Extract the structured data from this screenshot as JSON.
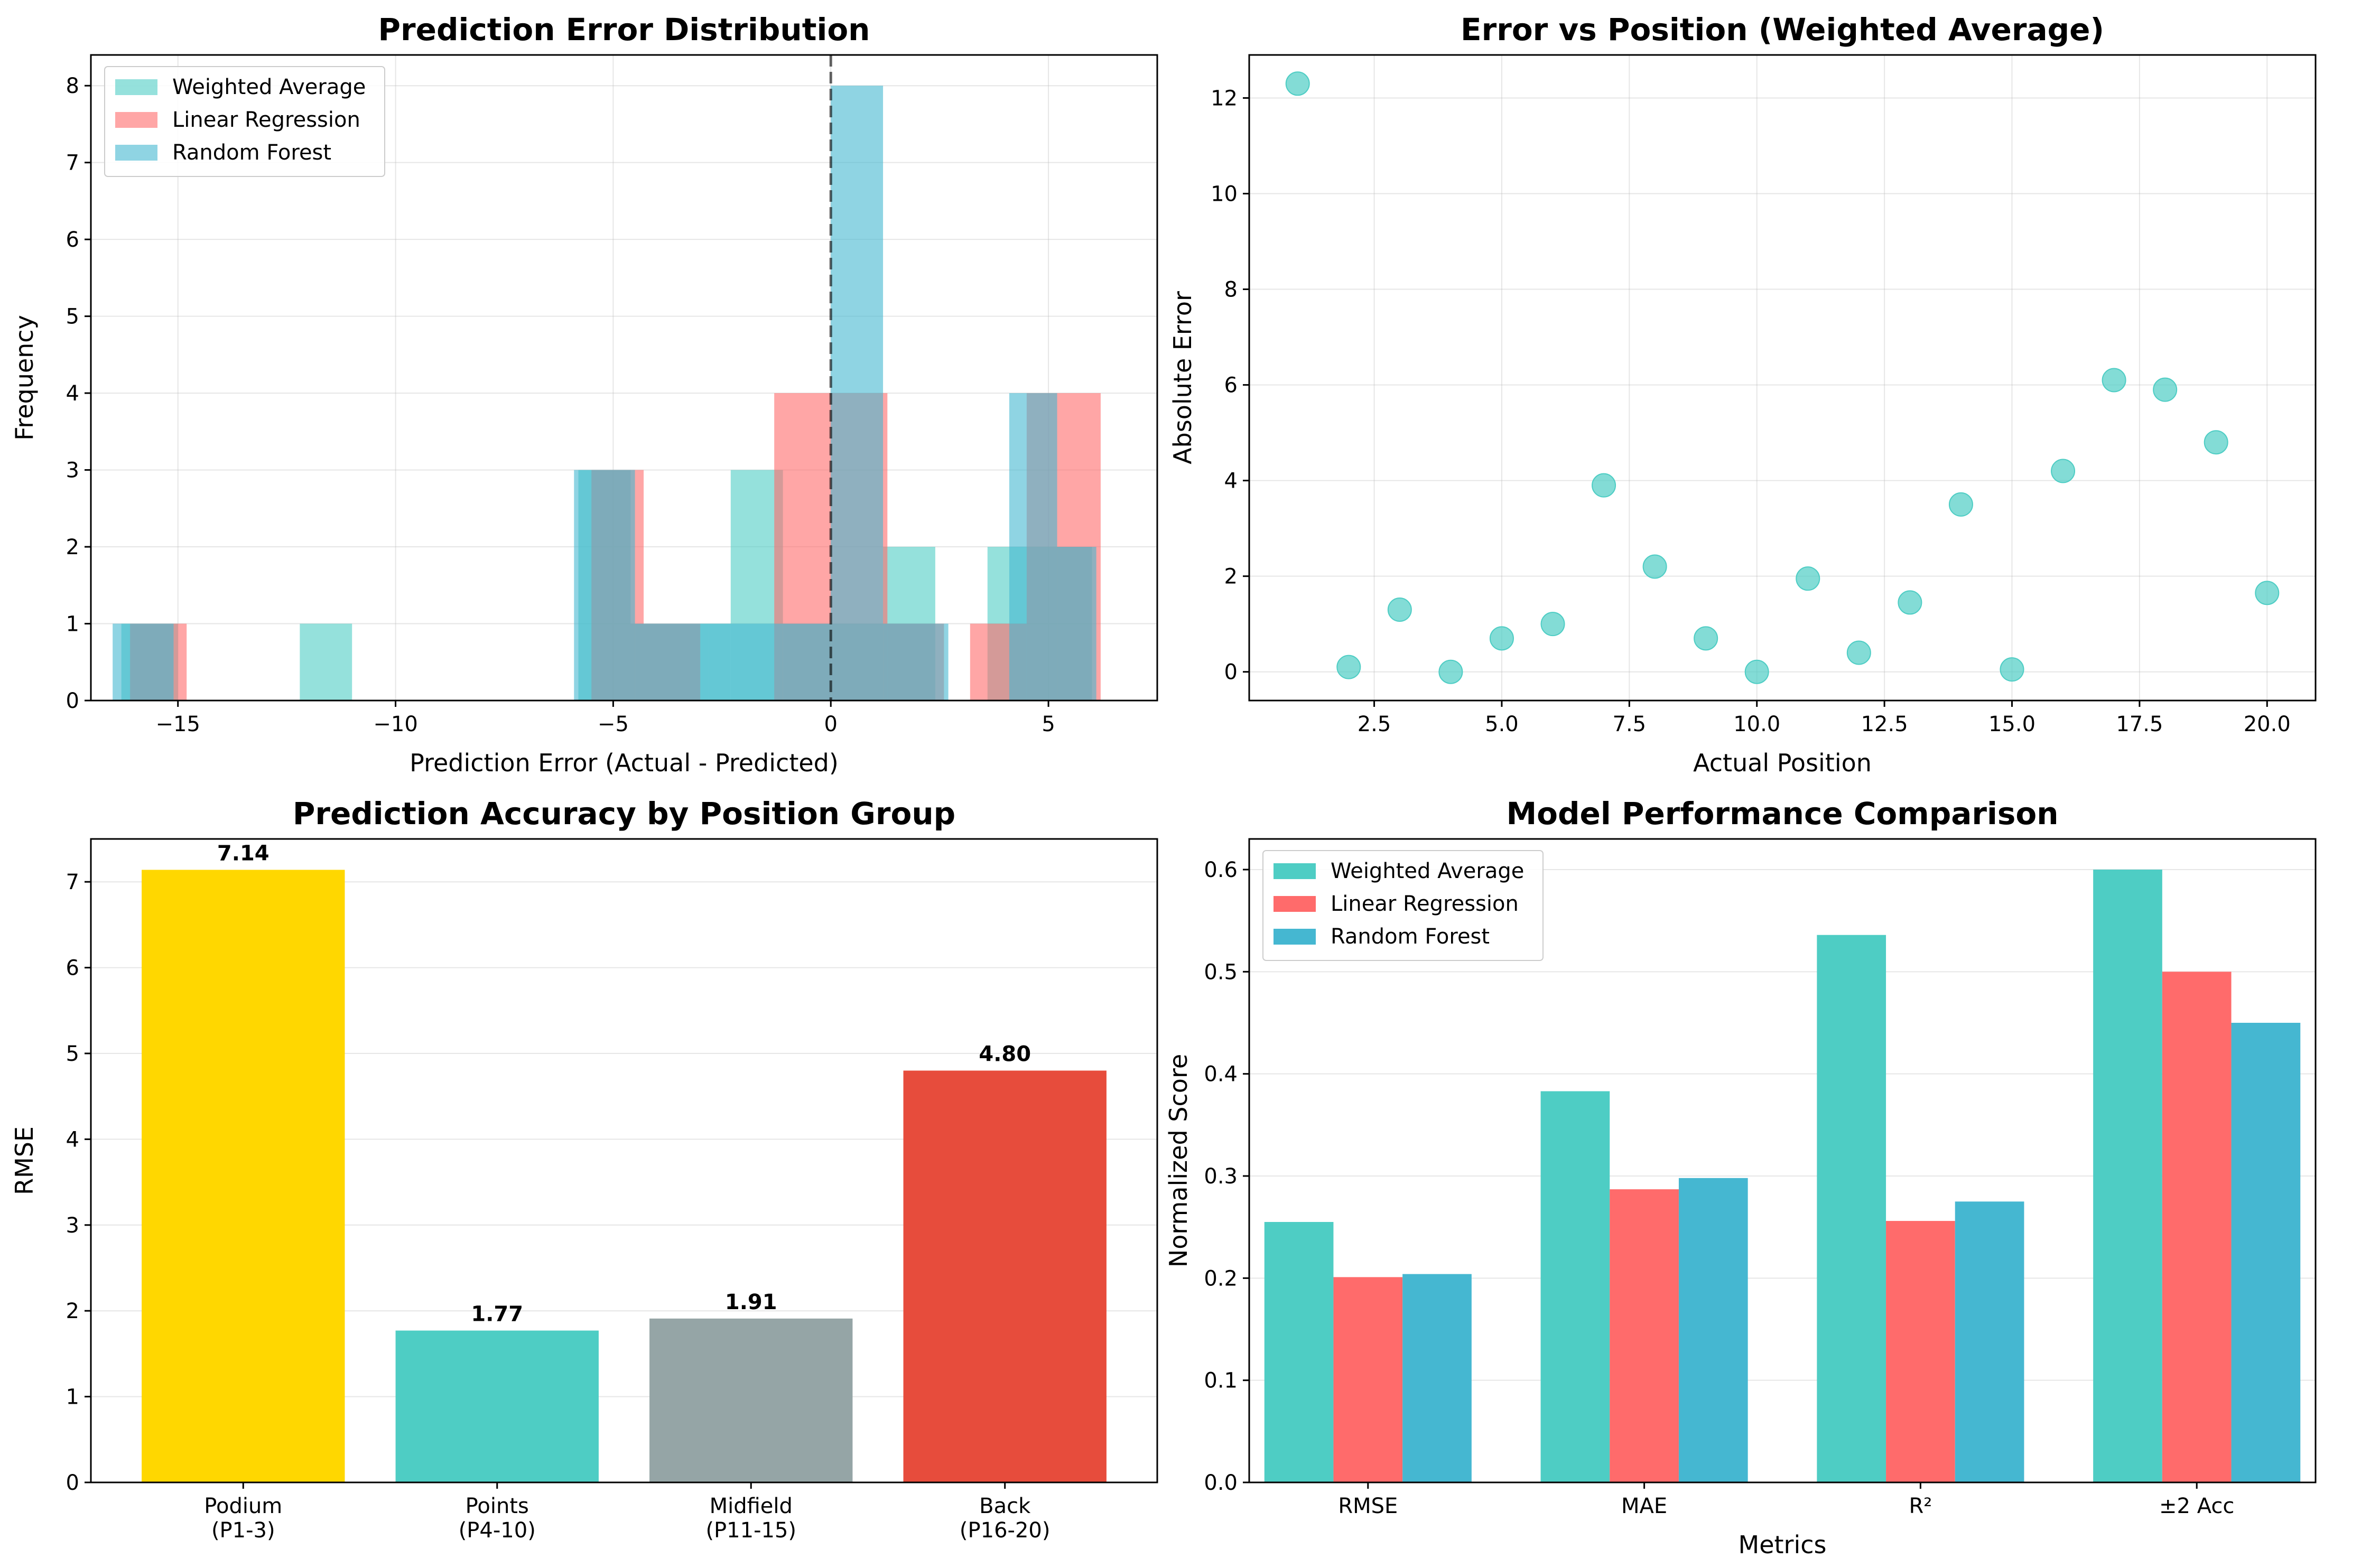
{
  "chart_data": [
    {
      "id": "hist",
      "type": "histogram",
      "title": "Prediction Error Distribution",
      "xlabel": "Prediction Error (Actual - Predicted)",
      "ylabel": "Frequency",
      "xlim": [
        -17,
        7.5
      ],
      "ylim": [
        0,
        8.4
      ],
      "xticks": [
        -15,
        -10,
        -5,
        0,
        5
      ],
      "xtick_labels": [
        "−15",
        "−10",
        "−5",
        "0",
        "5"
      ],
      "yticks": [
        0,
        1,
        2,
        3,
        4,
        5,
        6,
        7,
        8
      ],
      "grid": true,
      "legend_position": "top-left",
      "vline": {
        "x": 0,
        "style": "dashed"
      },
      "series": [
        {
          "name": "Weighted Average",
          "color": "#4ECDC4",
          "opacity": 0.6,
          "bins": [
            [
              -16.3,
              -15.0,
              1
            ],
            [
              -12.2,
              -11.0,
              1
            ],
            [
              -5.8,
              -4.6,
              3
            ],
            [
              -4.6,
              -3.3,
              1
            ],
            [
              -3.3,
              -2.3,
              1
            ],
            [
              -2.3,
              -1.1,
              3
            ],
            [
              -1.1,
              0.0,
              1
            ],
            [
              0.0,
              1.2,
              1
            ],
            [
              1.2,
              2.4,
              2
            ],
            [
              3.6,
              4.8,
              2
            ],
            [
              4.8,
              6.0,
              2
            ]
          ]
        },
        {
          "name": "Linear Regression",
          "color": "#FF6B6B",
          "opacity": 0.6,
          "bins": [
            [
              -16.1,
              -14.8,
              1
            ],
            [
              -5.5,
              -4.3,
              3
            ],
            [
              -4.3,
              -3.0,
              1
            ],
            [
              -1.3,
              0.0,
              4
            ],
            [
              0.0,
              1.3,
              4
            ],
            [
              1.3,
              2.6,
              1
            ],
            [
              3.2,
              4.5,
              1
            ],
            [
              4.5,
              5.8,
              4
            ],
            [
              5.8,
              6.2,
              4
            ]
          ]
        },
        {
          "name": "Random Forest",
          "color": "#45B7D1",
          "opacity": 0.6,
          "bins": [
            [
              -16.5,
              -15.1,
              1
            ],
            [
              -5.9,
              -4.5,
              3
            ],
            [
              -4.5,
              -2.8,
              1
            ],
            [
              -2.8,
              -1.1,
              1
            ],
            [
              -1.1,
              0.0,
              1
            ],
            [
              0.0,
              1.2,
              8
            ],
            [
              1.2,
              2.7,
              1
            ],
            [
              4.1,
              5.2,
              4
            ],
            [
              5.2,
              6.1,
              2
            ]
          ]
        }
      ]
    },
    {
      "id": "scatter",
      "type": "scatter",
      "title": "Error vs Position (Weighted Average)",
      "xlabel": "Actual Position",
      "ylabel": "Absolute Error",
      "xlim": [
        0.05,
        20.95
      ],
      "ylim": [
        -0.6,
        12.9
      ],
      "xticks": [
        2.5,
        5.0,
        7.5,
        10.0,
        12.5,
        15.0,
        17.5,
        20.0
      ],
      "xtick_labels": [
        "2.5",
        "5.0",
        "7.5",
        "10.0",
        "12.5",
        "15.0",
        "17.5",
        "20.0"
      ],
      "yticks": [
        0,
        2,
        4,
        6,
        8,
        10,
        12
      ],
      "grid": true,
      "color": "#4ECDC4",
      "x": [
        1,
        2,
        3,
        4,
        5,
        6,
        7,
        8,
        9,
        10,
        11,
        12,
        13,
        14,
        15,
        16,
        17,
        18,
        19,
        20
      ],
      "y": [
        12.3,
        0.1,
        1.3,
        0.0,
        0.7,
        1.0,
        3.9,
        2.2,
        0.7,
        0.0,
        1.95,
        0.4,
        1.45,
        3.5,
        0.05,
        4.2,
        6.1,
        5.9,
        4.8,
        1.65
      ]
    },
    {
      "id": "groups",
      "type": "bar",
      "title": "Prediction Accuracy by Position Group",
      "xlabel": "",
      "ylabel": "RMSE",
      "ylim": [
        0,
        7.5
      ],
      "yticks": [
        0,
        1,
        2,
        3,
        4,
        5,
        6,
        7
      ],
      "grid": true,
      "categories": [
        "Podium\n(P1-3)",
        "Points\n(P4-10)",
        "Midfield\n(P11-15)",
        "Back\n(P16-20)"
      ],
      "values": [
        7.14,
        1.77,
        1.91,
        4.8
      ],
      "value_labels": [
        "7.14",
        "1.77",
        "1.91",
        "4.80"
      ],
      "colors": [
        "#FFD700",
        "#4ECDC4",
        "#95A5A6",
        "#E74C3C"
      ]
    },
    {
      "id": "perf",
      "type": "bar",
      "title": "Model Performance Comparison",
      "xlabel": "Metrics",
      "ylabel": "Normalized Score",
      "ylim": [
        0,
        0.63
      ],
      "yticks": [
        0.0,
        0.1,
        0.2,
        0.3,
        0.4,
        0.5,
        0.6
      ],
      "ytick_labels": [
        "0.0",
        "0.1",
        "0.2",
        "0.3",
        "0.4",
        "0.5",
        "0.6"
      ],
      "grid": true,
      "legend_position": "top-left",
      "categories": [
        "RMSE",
        "MAE",
        "R²",
        "±2 Acc"
      ],
      "series": [
        {
          "name": "Weighted Average",
          "color": "#4ECDC4",
          "values": [
            0.255,
            0.383,
            0.536,
            0.6
          ]
        },
        {
          "name": "Linear Regression",
          "color": "#FF6B6B",
          "values": [
            0.201,
            0.287,
            0.256,
            0.5
          ]
        },
        {
          "name": "Random Forest",
          "color": "#45B7D1",
          "values": [
            0.204,
            0.298,
            0.275,
            0.45
          ]
        }
      ]
    }
  ]
}
